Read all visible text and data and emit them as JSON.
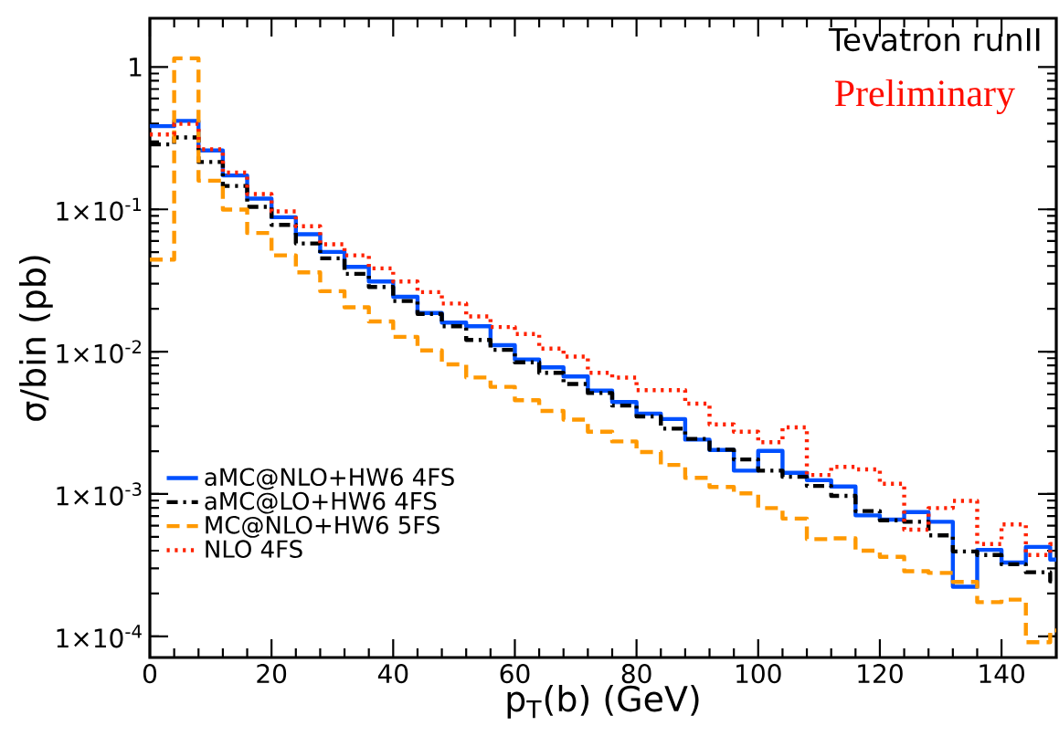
{
  "chart_data": {
    "type": "histogram",
    "xlabel": "p$_{T}$(b) (GeV)",
    "ylabel": "σ/bin (pb)",
    "annotations": [
      "Tevatron runII",
      "Preliminary"
    ],
    "bins": [
      0,
      4,
      8,
      12,
      16,
      20,
      24,
      28,
      32,
      36,
      40,
      44,
      48,
      52,
      56,
      60,
      64,
      68,
      72,
      76,
      80,
      84,
      88,
      92,
      96,
      100,
      104,
      108,
      112,
      116,
      120,
      124,
      128,
      132,
      136,
      140,
      144,
      148,
      152
    ],
    "series": [
      {
        "name": "aMC@NLO+HW6 4FS",
        "color": "#0050ff",
        "line_style": "solid",
        "values": [
          0.384,
          0.418,
          0.259,
          0.173,
          0.119,
          0.088,
          0.0668,
          0.0502,
          0.0394,
          0.0311,
          0.0243,
          0.0187,
          0.016,
          0.0151,
          0.0111,
          0.00881,
          0.00776,
          0.0067,
          0.00533,
          0.00443,
          0.00367,
          0.00336,
          0.00241,
          0.00204,
          0.00146,
          0.00201,
          0.00141,
          0.00125,
          0.00113,
          0.000708,
          0.000661,
          0.000747,
          0.000638,
          0.000223,
          0.000405,
          0.00033,
          0.000425,
          0.000346
        ]
      },
      {
        "name": "aMC@LO+HW6 4FS",
        "color": "#000000",
        "line_style": "dashdot",
        "values": [
          0.286,
          0.32,
          0.215,
          0.146,
          0.104,
          0.0778,
          0.0576,
          0.0453,
          0.0352,
          0.0285,
          0.0227,
          0.0184,
          0.0151,
          0.0121,
          0.0103,
          0.00841,
          0.0071,
          0.00593,
          0.00512,
          0.00418,
          0.00351,
          0.00288,
          0.00244,
          0.00205,
          0.00175,
          0.00146,
          0.00132,
          0.00114,
          0.00097,
          0.000759,
          0.000653,
          0.000638,
          0.000512,
          0.000395,
          0.000373,
          0.000321,
          0.000282,
          0.000244
        ]
      },
      {
        "name": "MC@NLO+HW6 5FS",
        "color": "#ff9900",
        "line_style": "dashed",
        "values": [
          0.0444,
          1.15,
          0.159,
          0.0995,
          0.0682,
          0.0475,
          0.0361,
          0.0266,
          0.0205,
          0.0163,
          0.0127,
          0.0102,
          0.00815,
          0.00659,
          0.00566,
          0.00456,
          0.00383,
          0.00333,
          0.00274,
          0.00234,
          0.00197,
          0.0016,
          0.0013,
          0.00112,
          0.00101,
          0.000797,
          0.000672,
          0.000482,
          0.000488,
          0.0004,
          0.000362,
          0.000287,
          0.000279,
          0.000241,
          0.000174,
          0.000181,
          9.1e-05,
          0.00011
        ]
      },
      {
        "name": "NLO 4FS",
        "color": "#ff2200",
        "line_style": "dotted",
        "values": [
          0.336,
          0.399,
          0.264,
          0.181,
          0.128,
          0.0966,
          0.076,
          0.0568,
          0.0475,
          0.0385,
          0.0311,
          0.0262,
          0.0218,
          0.0177,
          0.0149,
          0.0133,
          0.0105,
          0.00923,
          0.0071,
          0.00658,
          0.00537,
          0.00537,
          0.00431,
          0.00308,
          0.00274,
          0.00231,
          0.00294,
          0.00136,
          0.00155,
          0.00149,
          0.00118,
          0.000562,
          0.000797,
          0.000895,
          0.000445,
          0.000612,
          0.000373,
          0.000445
        ]
      }
    ],
    "xlim": [
      0,
      149
    ],
    "ylim": [
      7.1e-05,
      2.2
    ],
    "log": "y",
    "legend": "bottom left",
    "grid": false,
    "xticks": [
      0,
      20,
      40,
      60,
      80,
      100,
      120,
      140
    ],
    "yticks": [
      {
        "value": 0.0001,
        "label": "1×10$^{-4}$"
      },
      {
        "value": 0.001,
        "label": "1×10$^{-3}$"
      },
      {
        "value": 0.01,
        "label": "1×10$^{-2}$"
      },
      {
        "value": 0.1,
        "label": "1×10$^{-1}$"
      },
      1
    ]
  }
}
